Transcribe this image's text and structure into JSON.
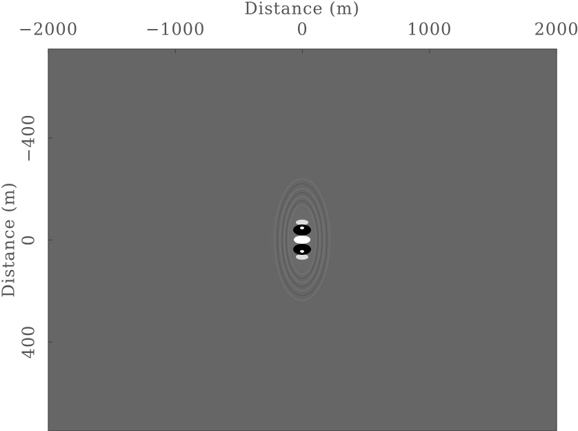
{
  "chart_data": {
    "type": "image",
    "xlabel": "Distance (m)",
    "ylabel": "Distance (m)",
    "xlim": [
      -2000,
      2000
    ],
    "xticks": [
      {
        "value": -2000,
        "label": "−2000"
      },
      {
        "value": -1000,
        "label": "−1000"
      },
      0,
      1000,
      2000
    ],
    "ylim": [
      -750,
      750
    ],
    "yticks": [
      {
        "value": -400,
        "label": "−400"
      },
      0,
      400
    ],
    "xaxis_position": "top",
    "y_inverted": true
  }
}
